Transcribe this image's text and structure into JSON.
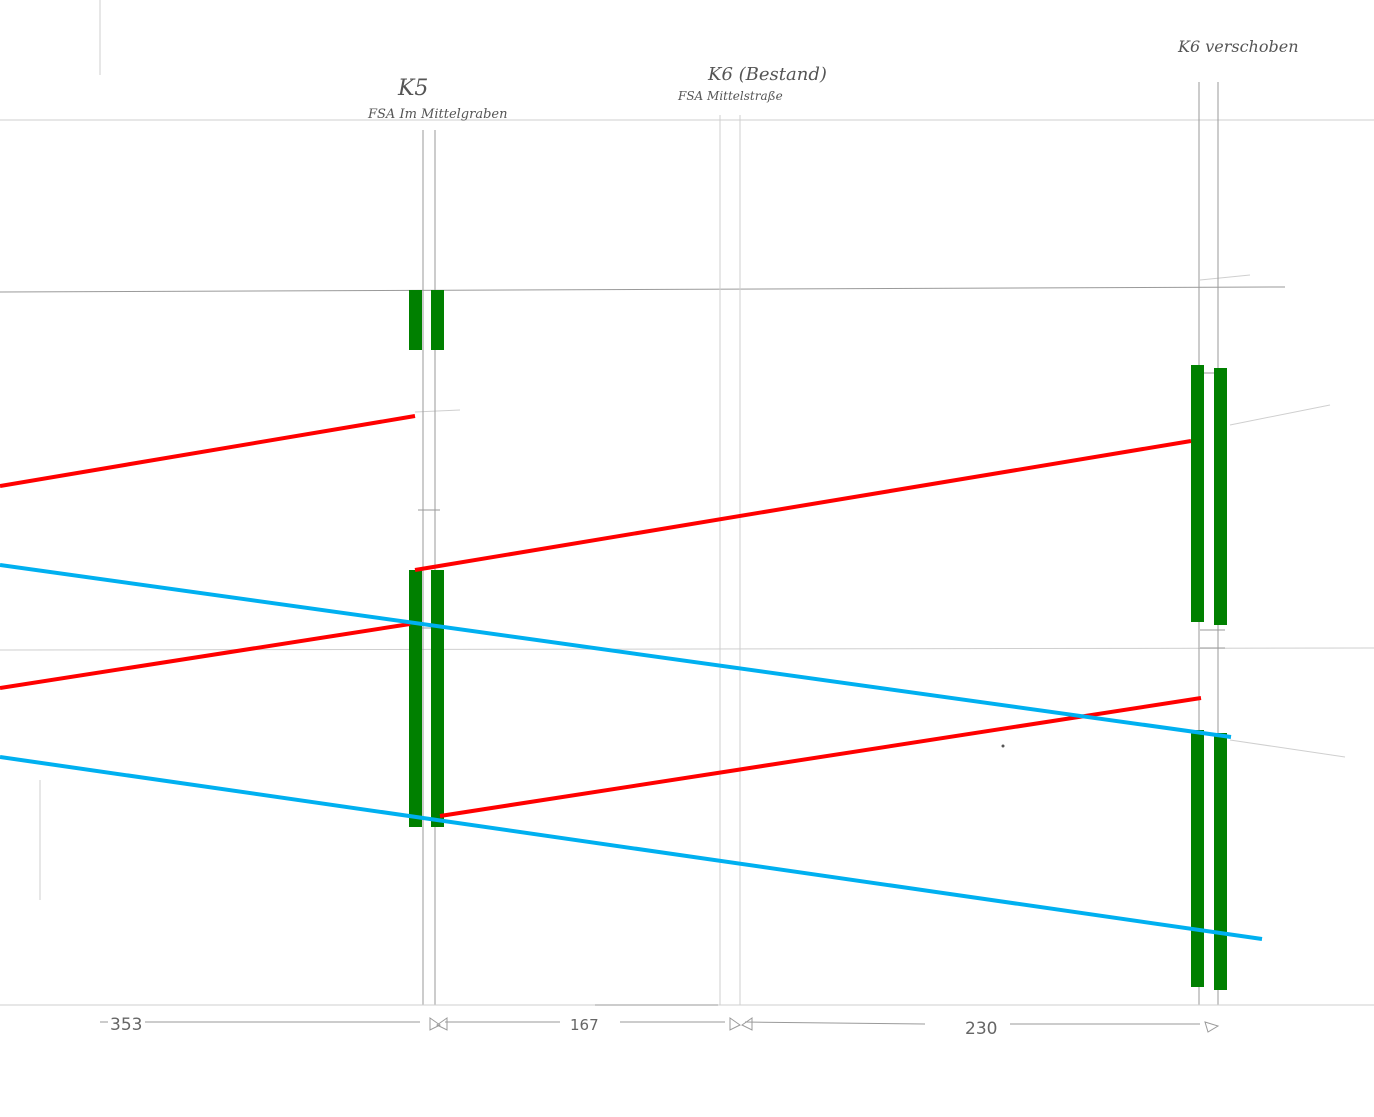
{
  "labels": {
    "k5_title": "K5",
    "k5_sub": "FSA Im Mittelgraben",
    "k6_title": "K6 (Bestand)",
    "k6_sub": "FSA Mittelstraße",
    "k6_moved": "K6 verschoben"
  },
  "dimensions": {
    "d1": "353",
    "d2": "167",
    "d3": "230"
  },
  "colors": {
    "signal_green": "#008000",
    "red_line": "#ff0000",
    "blue_line": "#00b0f0",
    "pencil": "#9a9a9a"
  }
}
